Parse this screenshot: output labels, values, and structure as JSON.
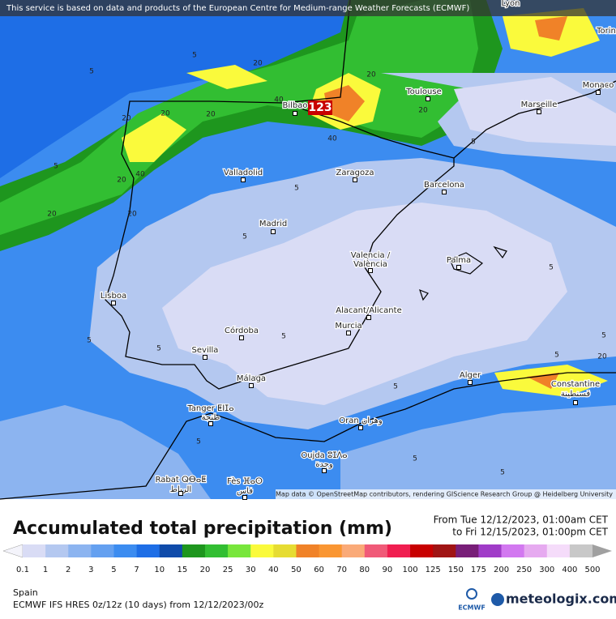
{
  "notice": "This service is based on data and products of the European Centre for Medium-range Weather Forecasts (ECMWF)",
  "map": {
    "cities": [
      "Lyon",
      "Torin",
      "Monaco",
      "Marseille",
      "Toulouse",
      "Bilbao",
      "Zaragoza",
      "Barcelona",
      "Valladolid",
      "Madrid",
      "Valencia /",
      "València",
      "Palma",
      "Lisboa",
      "Alacant/Alicante",
      "Murcia",
      "Córdoba",
      "Sevilla",
      "Málaga",
      "Alger",
      "Constantine",
      "قسنطينة",
      "Tanger ⵟⵏⵊⴰ",
      "طنجة",
      "Oran وهران",
      "Oujda ⵓⵊⴷⴰ",
      "وجدة",
      "Rabat ⵕⴱⴰⵟ",
      "الرباط",
      "Fès ⴼⴰⵙ",
      "فاس"
    ],
    "max_label": "123",
    "contour_labels": [
      "5",
      "5",
      "5",
      "5",
      "5",
      "5",
      "5",
      "5",
      "5",
      "5",
      "5",
      "5",
      "5",
      "5",
      "5",
      "5",
      "20",
      "20",
      "20",
      "20",
      "20",
      "20",
      "20",
      "20",
      "20",
      "40",
      "40",
      "40",
      "20"
    ],
    "attribution": "Map data © OpenStreetMap contributors, rendering GIScience Research Group @ Heidelberg University"
  },
  "title": "Accumulated total precipitation (mm)",
  "period": {
    "from": "From Tue 12/12/2023, 01:00am CET",
    "to": "to Fri 12/15/2023, 01:00pm CET"
  },
  "legend": {
    "ticks": [
      "0.1",
      "1",
      "2",
      "3",
      "5",
      "7",
      "10",
      "15",
      "20",
      "25",
      "30",
      "40",
      "50",
      "60",
      "70",
      "80",
      "90",
      "100",
      "125",
      "150",
      "175",
      "200",
      "250",
      "300",
      "400",
      "500"
    ],
    "colors": [
      "#f4f4fb",
      "#d9dcf5",
      "#b4c8f0",
      "#8cb4f0",
      "#64a0f0",
      "#3c8cf0",
      "#1e6ee6",
      "#0f4baa",
      "#1e961e",
      "#32be32",
      "#78e63c",
      "#fafa3c",
      "#e6dc32",
      "#f08228",
      "#fa9632",
      "#faaa78",
      "#f05a78",
      "#f01e50",
      "#c80000",
      "#a01414",
      "#781e78",
      "#a03cc8",
      "#d278f0",
      "#e6aaf0",
      "#f5dcfa",
      "#c8c8c8",
      "#a0a0a0"
    ]
  },
  "region": "Spain",
  "model": "ECMWF IFS HRES 0z/12z (10 days) from  12/12/2023/00z",
  "logos": [
    "ECMWF",
    "meteologix.com"
  ]
}
